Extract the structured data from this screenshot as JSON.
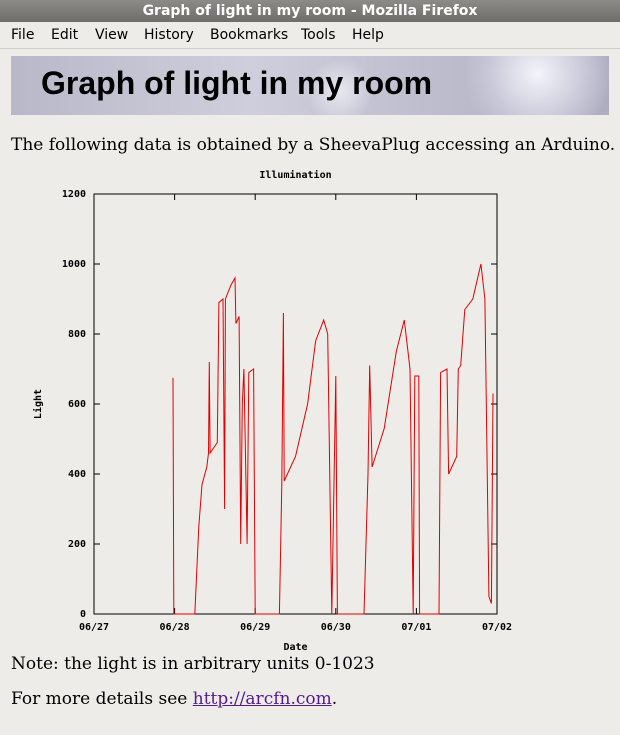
{
  "window": {
    "title": "Graph of light in my room - Mozilla Firefox"
  },
  "menu": [
    "File",
    "Edit",
    "View",
    "History",
    "Bookmarks",
    "Tools",
    "Help"
  ],
  "header": {
    "title": "Graph of light in my room"
  },
  "intro": "The following data is obtained by a SheevaPlug accessing an Arduino.",
  "chart_data": {
    "type": "line",
    "title": "Illumination",
    "x_label": "Date",
    "y_label": "Light",
    "xlim": [
      0,
      5
    ],
    "xticks": [
      {
        "value": 0,
        "label": "06/27"
      },
      {
        "value": 1,
        "label": "06/28"
      },
      {
        "value": 2,
        "label": "06/29"
      },
      {
        "value": 3,
        "label": "06/30"
      },
      {
        "value": 4,
        "label": "07/01"
      },
      {
        "value": 5,
        "label": "07/02"
      }
    ],
    "ylim": [
      0,
      1200
    ],
    "yticks": [
      0,
      200,
      400,
      600,
      800,
      1000,
      1200
    ],
    "series": [
      {
        "name": "Light",
        "color": "#e00000",
        "x": [
          0.98,
          0.99,
          1.25,
          1.27,
          1.3,
          1.34,
          1.4,
          1.42,
          1.43,
          1.44,
          1.53,
          1.55,
          1.6,
          1.62,
          1.63,
          1.7,
          1.75,
          1.76,
          1.8,
          1.82,
          1.84,
          1.86,
          1.9,
          1.92,
          1.98,
          2.0,
          2.3,
          2.33,
          2.35,
          2.36,
          2.5,
          2.65,
          2.75,
          2.85,
          2.9,
          2.95,
          3.0,
          3.02,
          3.35,
          3.4,
          3.42,
          3.45,
          3.6,
          3.75,
          3.85,
          3.92,
          3.96,
          3.98,
          4.03,
          4.04,
          4.28,
          4.3,
          4.38,
          4.4,
          4.5,
          4.52,
          4.55,
          4.6,
          4.7,
          4.8,
          4.85,
          4.9,
          4.93,
          4.95
        ],
        "values": [
          675,
          0,
          0,
          100,
          250,
          370,
          420,
          460,
          720,
          460,
          490,
          890,
          900,
          300,
          900,
          940,
          960,
          830,
          850,
          200,
          600,
          700,
          200,
          690,
          700,
          0,
          0,
          370,
          860,
          380,
          450,
          600,
          780,
          840,
          800,
          0,
          680,
          0,
          0,
          400,
          710,
          420,
          530,
          750,
          840,
          700,
          0,
          680,
          680,
          0,
          0,
          690,
          700,
          400,
          450,
          700,
          710,
          870,
          900,
          1000,
          900,
          50,
          30,
          630
        ]
      }
    ]
  },
  "note": "Note: the light is in arbitrary units 0-1023",
  "details": {
    "text": "For more details see",
    "link": "http://arcfn.com",
    "end": "."
  }
}
